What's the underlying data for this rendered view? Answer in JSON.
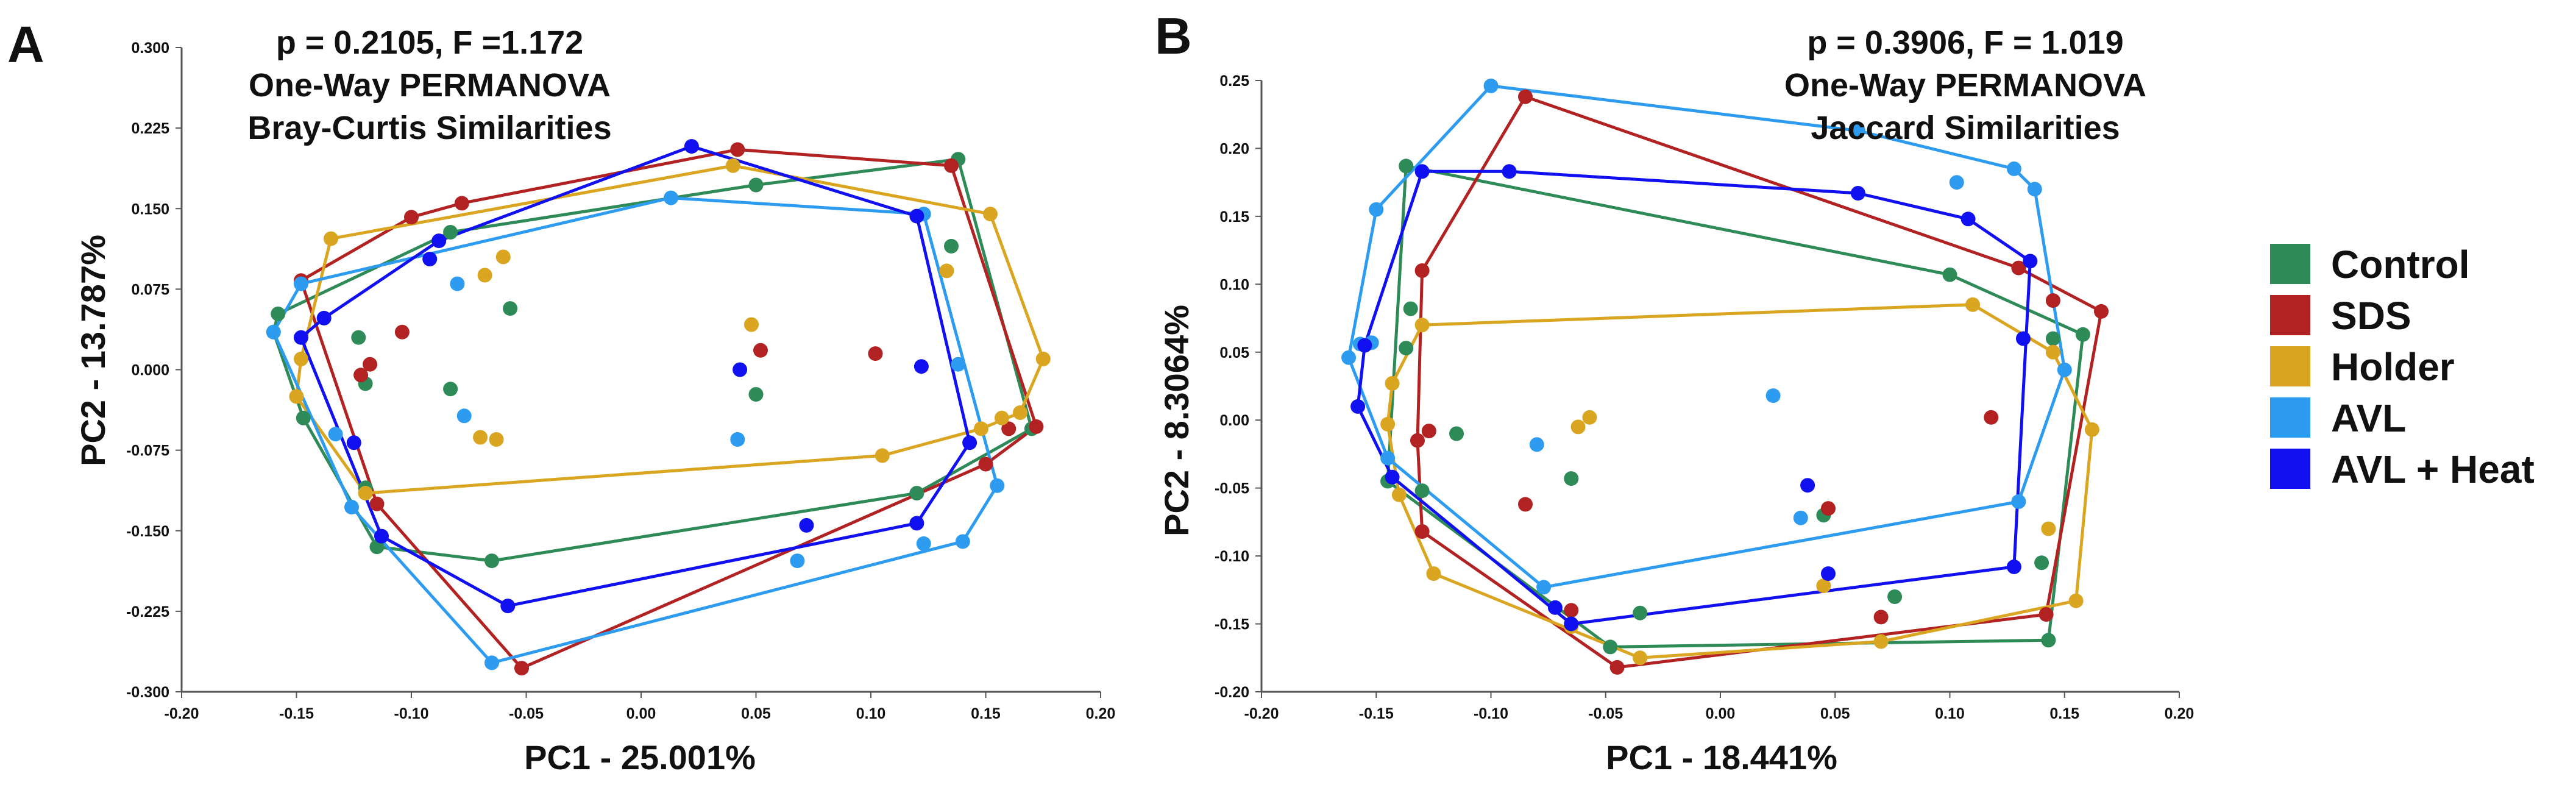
{
  "colors": {
    "Control": "#2e8b57",
    "SDS": "#b22222",
    "Holder": "#daa520",
    "AVL": "#2d9cf0",
    "AVL + Heat": "#1010f0"
  },
  "legend": {
    "items": [
      {
        "label": "Control",
        "color": "#2e8b57"
      },
      {
        "label": "SDS",
        "color": "#b22222"
      },
      {
        "label": "Holder",
        "color": "#daa520"
      },
      {
        "label": "AVL",
        "color": "#2d9cf0"
      },
      {
        "label": "AVL + Heat",
        "color": "#1010f0"
      }
    ]
  },
  "chart_data": [
    {
      "type": "scatter",
      "panel": "A",
      "annotation": [
        "p = 0.2105, F =1.172",
        "One-Way PERMANOVA",
        "Bray-Curtis Similarities"
      ],
      "xlabel": "PC1 - 25.001%",
      "ylabel": "PC2 - 13.787%",
      "xlim": [
        -0.2,
        0.2
      ],
      "ylim": [
        -0.3,
        0.3
      ],
      "xticks": [
        "-0.20",
        "-0.15",
        "-0.10",
        "-0.05",
        "0.00",
        "0.05",
        "0.10",
        "0.15",
        "0.20"
      ],
      "yticks": [
        "-0.300",
        "-0.225",
        "-0.150",
        "-0.075",
        "0.000",
        "0.075",
        "0.150",
        "0.225",
        "0.300"
      ],
      "series": [
        {
          "name": "Control",
          "hull": true,
          "points": [
            [
              -0.158,
              0.052
            ],
            [
              -0.16,
              0.035
            ],
            [
              -0.147,
              -0.045
            ],
            [
              -0.115,
              -0.165
            ],
            [
              -0.12,
              -0.11
            ],
            [
              -0.065,
              -0.178
            ],
            [
              -0.12,
              -0.013
            ],
            [
              -0.123,
              0.03
            ],
            [
              -0.083,
              -0.018
            ],
            [
              -0.083,
              0.128
            ],
            [
              -0.057,
              0.057
            ],
            [
              0.05,
              0.172
            ],
            [
              0.138,
              0.196
            ],
            [
              0.135,
              0.115
            ],
            [
              0.17,
              -0.055
            ],
            [
              0.12,
              -0.115
            ],
            [
              0.05,
              -0.023
            ]
          ]
        },
        {
          "name": "SDS",
          "hull": true,
          "points": [
            [
              -0.148,
              0.083
            ],
            [
              -0.115,
              -0.125
            ],
            [
              -0.122,
              -0.005
            ],
            [
              -0.118,
              0.005
            ],
            [
              -0.104,
              0.035
            ],
            [
              -0.1,
              0.142
            ],
            [
              -0.078,
              0.155
            ],
            [
              -0.052,
              -0.278
            ],
            [
              0.042,
              0.205
            ],
            [
              0.135,
              0.19
            ],
            [
              0.172,
              -0.053
            ],
            [
              0.16,
              -0.055
            ],
            [
              0.15,
              -0.088
            ],
            [
              0.052,
              0.018
            ],
            [
              0.102,
              0.015
            ]
          ]
        },
        {
          "name": "Holder",
          "hull": true,
          "points": [
            [
              -0.15,
              -0.025
            ],
            [
              -0.148,
              0.01
            ],
            [
              -0.135,
              0.122
            ],
            [
              -0.12,
              -0.115
            ],
            [
              -0.068,
              0.088
            ],
            [
              -0.06,
              0.105
            ],
            [
              -0.07,
              -0.063
            ],
            [
              -0.063,
              -0.065
            ],
            [
              0.04,
              0.19
            ],
            [
              0.048,
              0.042
            ],
            [
              0.105,
              -0.08
            ],
            [
              0.133,
              0.092
            ],
            [
              0.152,
              0.145
            ],
            [
              0.175,
              0.01
            ],
            [
              0.165,
              -0.04
            ],
            [
              0.157,
              -0.045
            ],
            [
              0.148,
              -0.055
            ]
          ]
        },
        {
          "name": "AVL",
          "hull": true,
          "points": [
            [
              -0.16,
              0.035
            ],
            [
              -0.148,
              0.08
            ],
            [
              -0.133,
              -0.06
            ],
            [
              -0.126,
              -0.128
            ],
            [
              -0.065,
              -0.273
            ],
            [
              -0.08,
              0.08
            ],
            [
              -0.077,
              -0.043
            ],
            [
              0.013,
              0.16
            ],
            [
              0.068,
              -0.178
            ],
            [
              0.042,
              -0.065
            ],
            [
              0.123,
              0.145
            ],
            [
              0.123,
              -0.162
            ],
            [
              0.138,
              0.005
            ],
            [
              0.14,
              -0.16
            ],
            [
              0.155,
              -0.108
            ]
          ]
        },
        {
          "name": "AVL + Heat",
          "hull": true,
          "points": [
            [
              -0.148,
              0.03
            ],
            [
              -0.138,
              0.048
            ],
            [
              -0.092,
              0.103
            ],
            [
              -0.088,
              0.12
            ],
            [
              -0.125,
              -0.068
            ],
            [
              -0.113,
              -0.155
            ],
            [
              -0.058,
              -0.22
            ],
            [
              0.022,
              0.208
            ],
            [
              0.12,
              0.143
            ],
            [
              0.12,
              -0.143
            ],
            [
              0.143,
              -0.068
            ],
            [
              0.043,
              0.0
            ],
            [
              0.072,
              -0.145
            ],
            [
              0.122,
              0.003
            ]
          ]
        }
      ]
    },
    {
      "type": "scatter",
      "panel": "B",
      "annotation": [
        "p = 0.3906, F = 1.019",
        "One-Way PERMANOVA",
        "Jaccard Similarities"
      ],
      "xlabel": "PC1 - 18.441%",
      "ylabel": "PC2 - 8.3064%",
      "xlim": [
        -0.2,
        0.2
      ],
      "ylim": [
        -0.2,
        0.25
      ],
      "xticks": [
        "-0.20",
        "-0.15",
        "-0.10",
        "-0.05",
        "0.00",
        "0.05",
        "0.10",
        "0.15",
        "0.20"
      ],
      "yticks": [
        "-0.20",
        "-0.15",
        "-0.10",
        "-0.05",
        "0.00",
        "0.05",
        "0.10",
        "0.15",
        "0.20",
        "0.25"
      ],
      "series": [
        {
          "name": "Control",
          "hull": true,
          "points": [
            [
              -0.137,
              0.187
            ],
            [
              -0.135,
              0.082
            ],
            [
              -0.137,
              0.053
            ],
            [
              -0.145,
              -0.045
            ],
            [
              -0.13,
              -0.052
            ],
            [
              -0.115,
              -0.01
            ],
            [
              -0.065,
              -0.043
            ],
            [
              -0.035,
              -0.142
            ],
            [
              -0.048,
              -0.167
            ],
            [
              0.045,
              -0.07
            ],
            [
              0.076,
              -0.13
            ],
            [
              0.1,
              0.107
            ],
            [
              0.145,
              0.06
            ],
            [
              0.14,
              -0.105
            ],
            [
              0.143,
              -0.162
            ],
            [
              0.158,
              0.063
            ]
          ]
        },
        {
          "name": "SDS",
          "hull": true,
          "points": [
            [
              -0.13,
              0.11
            ],
            [
              -0.132,
              -0.015
            ],
            [
              -0.127,
              -0.008
            ],
            [
              -0.13,
              -0.082
            ],
            [
              -0.085,
              0.238
            ],
            [
              -0.085,
              -0.062
            ],
            [
              -0.065,
              -0.14
            ],
            [
              -0.045,
              -0.182
            ],
            [
              0.047,
              -0.065
            ],
            [
              0.07,
              -0.145
            ],
            [
              0.118,
              0.002
            ],
            [
              0.13,
              0.112
            ],
            [
              0.145,
              0.088
            ],
            [
              0.142,
              -0.143
            ],
            [
              0.166,
              0.08
            ]
          ]
        },
        {
          "name": "Holder",
          "hull": true,
          "points": [
            [
              -0.145,
              -0.003
            ],
            [
              -0.143,
              0.027
            ],
            [
              -0.14,
              -0.055
            ],
            [
              -0.13,
              0.07
            ],
            [
              -0.125,
              -0.113
            ],
            [
              -0.062,
              -0.005
            ],
            [
              -0.057,
              0.002
            ],
            [
              -0.065,
              -0.152
            ],
            [
              -0.035,
              -0.175
            ],
            [
              0.045,
              -0.122
            ],
            [
              0.07,
              -0.163
            ],
            [
              0.11,
              0.085
            ],
            [
              0.145,
              0.05
            ],
            [
              0.143,
              -0.08
            ],
            [
              0.155,
              -0.133
            ],
            [
              0.162,
              -0.007
            ]
          ]
        },
        {
          "name": "AVL",
          "hull": true,
          "points": [
            [
              -0.162,
              0.046
            ],
            [
              -0.157,
              0.056
            ],
            [
              -0.15,
              0.155
            ],
            [
              -0.152,
              0.057
            ],
            [
              -0.145,
              -0.028
            ],
            [
              -0.1,
              0.246
            ],
            [
              -0.077,
              -0.123
            ],
            [
              -0.08,
              -0.018
            ],
            [
              0.023,
              0.018
            ],
            [
              0.035,
              -0.072
            ],
            [
              0.06,
              0.213
            ],
            [
              0.103,
              0.175
            ],
            [
              0.128,
              0.185
            ],
            [
              0.137,
              0.17
            ],
            [
              0.15,
              0.037
            ],
            [
              0.13,
              -0.06
            ]
          ]
        },
        {
          "name": "AVL + Heat",
          "hull": true,
          "points": [
            [
              -0.155,
              0.055
            ],
            [
              -0.158,
              0.01
            ],
            [
              -0.143,
              -0.042
            ],
            [
              -0.13,
              0.183
            ],
            [
              -0.092,
              0.183
            ],
            [
              -0.065,
              -0.15
            ],
            [
              -0.072,
              -0.138
            ],
            [
              0.038,
              -0.048
            ],
            [
              0.047,
              -0.113
            ],
            [
              0.06,
              0.167
            ],
            [
              0.108,
              0.148
            ],
            [
              0.132,
              0.06
            ],
            [
              0.135,
              0.117
            ],
            [
              0.128,
              -0.108
            ]
          ]
        }
      ]
    }
  ]
}
